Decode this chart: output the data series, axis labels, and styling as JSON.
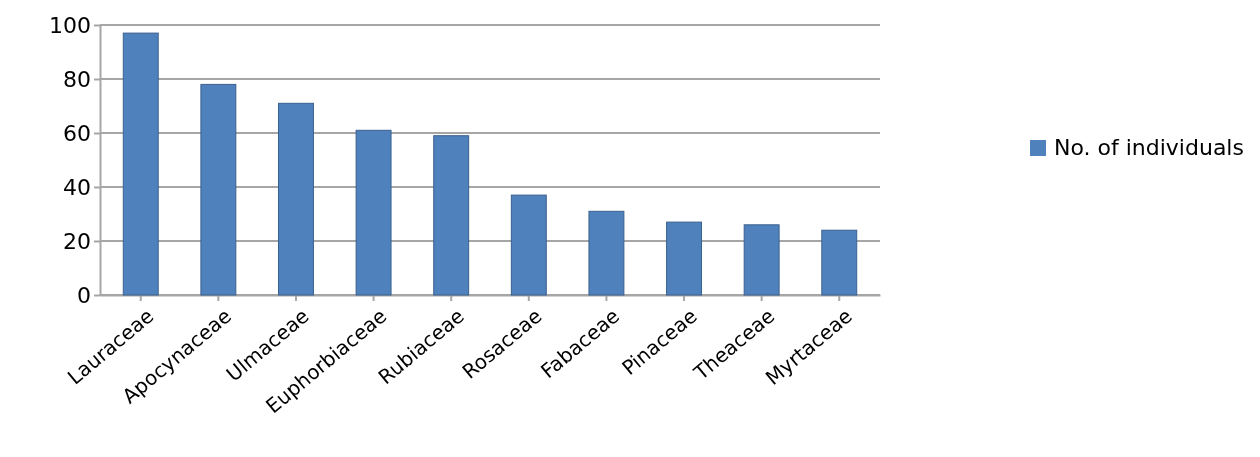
{
  "chart_data": {
    "type": "bar",
    "categories": [
      "Lauraceae",
      "Apocynaceae",
      "Ulmaceae",
      "Euphorbiaceae",
      "Rubiaceae",
      "Rosaceae",
      "Fabaceae",
      "Pinaceae",
      "Theaceae",
      "Myrtaceae"
    ],
    "series": [
      {
        "name": "No. of individuals",
        "color": "#4f81bd",
        "values": [
          97,
          78,
          71,
          61,
          59,
          37,
          31,
          27,
          26,
          24
        ]
      }
    ],
    "ylim": [
      0,
      100
    ],
    "yticks": [
      0,
      20,
      40,
      60,
      80,
      100
    ],
    "grid": "y",
    "legend": "right"
  }
}
